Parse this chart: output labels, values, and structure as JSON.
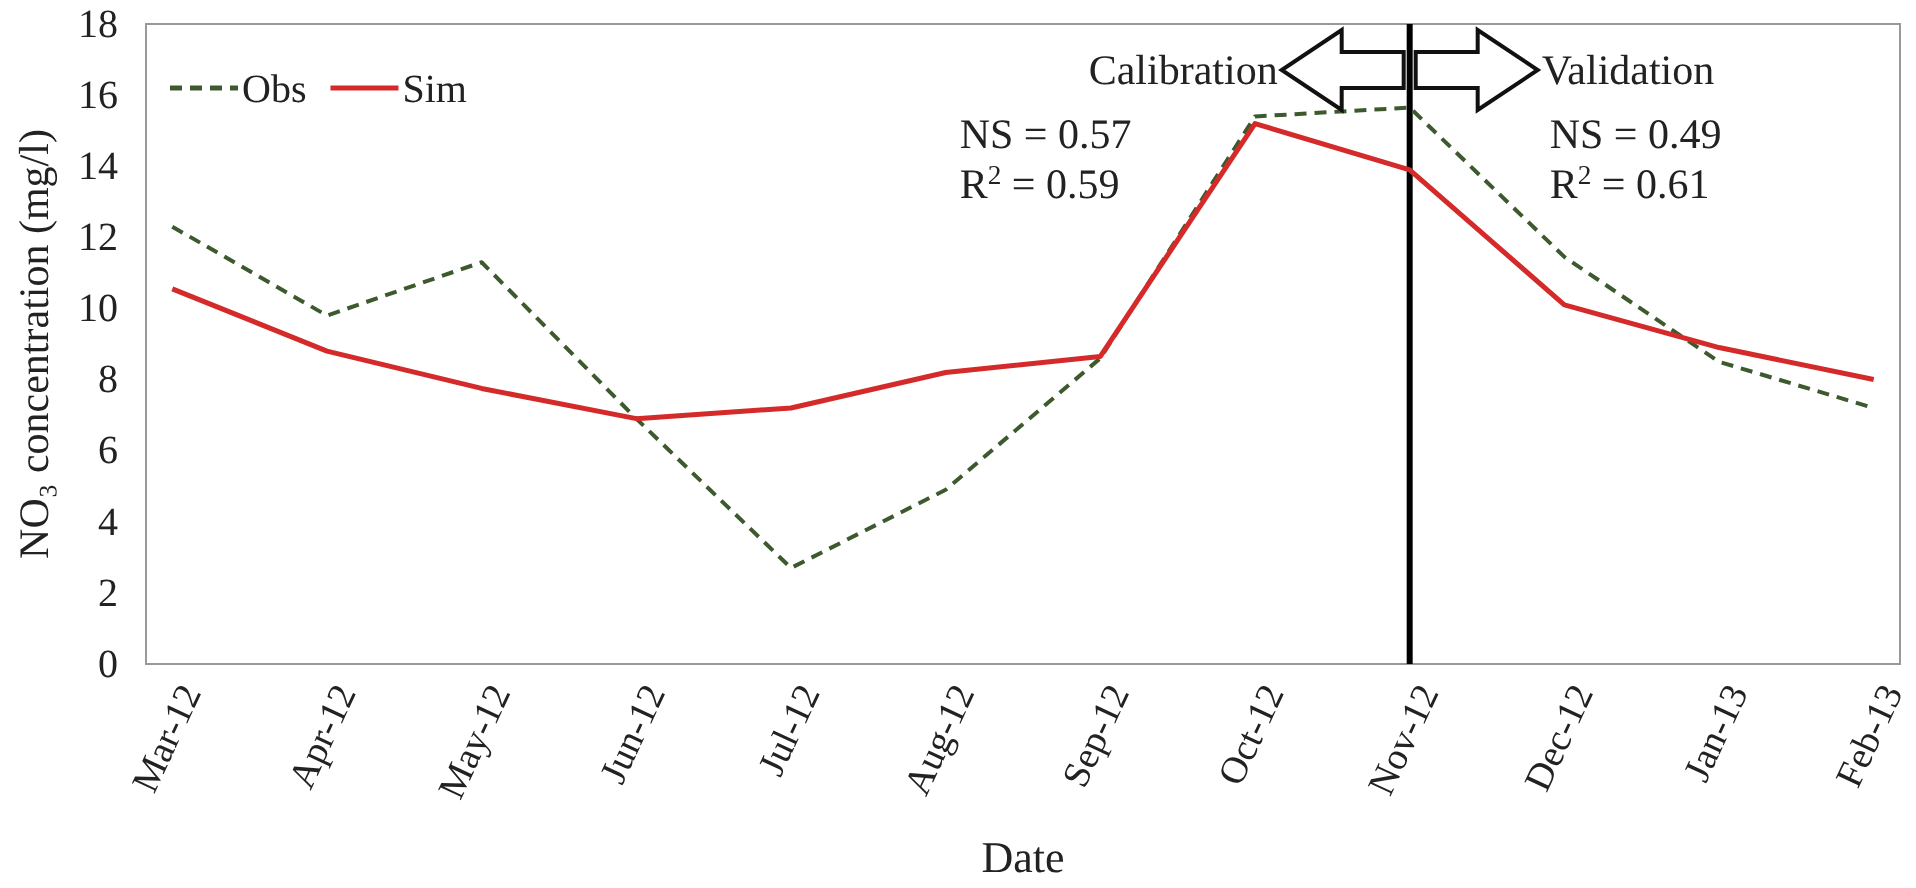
{
  "chart_data": {
    "type": "line",
    "xlabel": "Date",
    "ylabel": "NO₃ concentration (mg/l)",
    "categories": [
      "Mar-12",
      "Apr-12",
      "May-12",
      "Jun-12",
      "Jul-12",
      "Aug-12",
      "Sep-12",
      "Oct-12",
      "Nov-12",
      "Dec-12",
      "Jan-13",
      "Feb-13"
    ],
    "series": [
      {
        "name": "Obs",
        "color": "#3d5a2e",
        "line_style": "dashed",
        "values": [
          12.3,
          9.8,
          11.3,
          6.9,
          2.7,
          4.9,
          8.6,
          15.4,
          15.65,
          11.45,
          8.5,
          7.2
        ]
      },
      {
        "name": "Sim",
        "color": "#d42a2a",
        "line_style": "solid",
        "values": [
          10.55,
          8.8,
          7.75,
          6.9,
          7.2,
          8.2,
          8.65,
          15.2,
          13.9,
          10.1,
          8.9,
          8.0
        ]
      }
    ],
    "ylim": [
      0,
      18
    ],
    "yticks": [
      0,
      2,
      4,
      6,
      8,
      10,
      12,
      14,
      16,
      18
    ],
    "grid": false,
    "legend": "top left",
    "marker": "none",
    "ref_lines": [
      {
        "axis": "x",
        "value": "Nov-12",
        "color": "#000000"
      }
    ],
    "annotations": [
      "Calibration",
      "Validation",
      "NS = 0.57",
      "R$^{2}$ = 0.59",
      "NS = 0.49",
      "R$^{2}$ = 0.61"
    ]
  }
}
